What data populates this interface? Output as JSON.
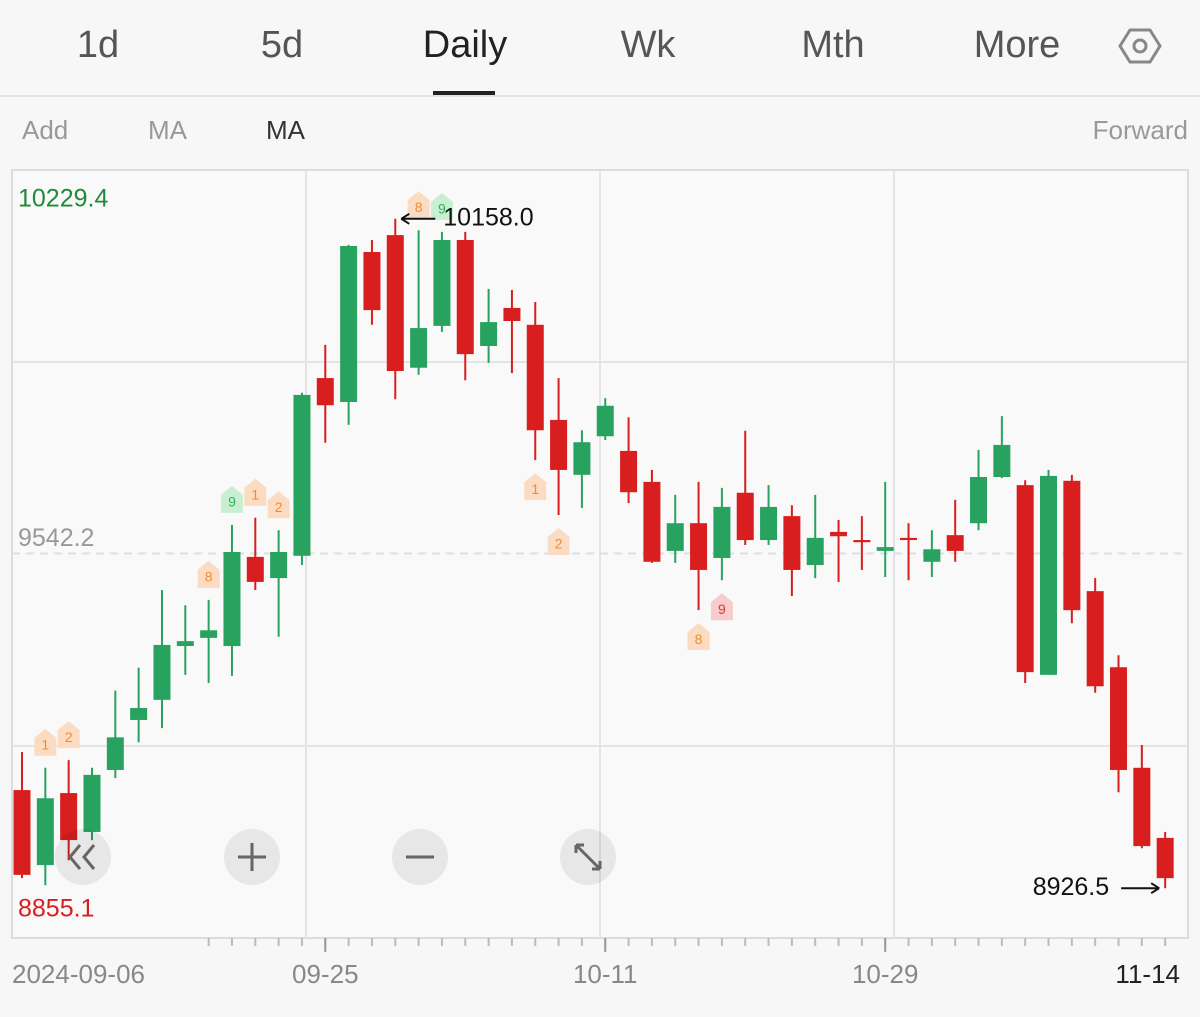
{
  "tabs": {
    "items": [
      "1d",
      "5d",
      "Daily",
      "Wk",
      "Mth",
      "More"
    ],
    "active": "Daily"
  },
  "toolbar": {
    "left": [
      "Add",
      "MA",
      "MA"
    ],
    "right": "Forward"
  },
  "chart_data": {
    "type": "candlestick",
    "categories": [
      "2024-09-06",
      null,
      null,
      null,
      null,
      null,
      null,
      null,
      null,
      null,
      null,
      null,
      null,
      "09-25",
      null,
      null,
      null,
      null,
      null,
      null,
      null,
      null,
      null,
      null,
      null,
      "10-11",
      null,
      null,
      null,
      null,
      null,
      null,
      null,
      null,
      null,
      null,
      null,
      "10-29",
      null,
      null,
      null,
      null,
      null,
      null,
      null,
      null,
      null,
      null,
      null,
      "11-14"
    ],
    "open": [
      9107,
      8969,
      9101.5,
      9030,
      9144,
      9236,
      9273,
      9372,
      9387,
      9372,
      9536,
      9497,
      9538,
      9865,
      9821,
      10097,
      10128,
      9884,
      9961,
      10119,
      9924,
      9994,
      9963,
      9788,
      9687,
      9758,
      9731,
      9674,
      9547,
      9598,
      9534,
      9654,
      9567,
      9611,
      9521,
      9582,
      9567,
      9547,
      9571,
      9527,
      9576,
      9598,
      9683,
      9668,
      9319,
      9676,
      9473,
      9333,
      9148,
      9019
    ],
    "high": [
      9177,
      9148,
      9162,
      9148,
      9290,
      9332,
      9475,
      9447,
      9457,
      9595,
      9608,
      9585,
      9838,
      9926,
      10110,
      10119,
      10158.0,
      10137,
      10134,
      10134,
      10029,
      10027,
      10005,
      9865,
      9769,
      9828,
      9793,
      9696,
      9650,
      9674,
      9663,
      9768,
      9668,
      9631,
      9650,
      9604,
      9611,
      9674,
      9598,
      9585,
      9641,
      9733,
      9795,
      9677,
      9696,
      9687,
      9497,
      9355,
      9190,
      9030
    ],
    "low": [
      8945,
      8932,
      8978,
      9015,
      9129,
      9195,
      9221,
      9319,
      9304,
      9317,
      9475,
      9389,
      9521,
      9746,
      9779,
      9963,
      9826,
      9871,
      9950,
      9861,
      9893,
      9874,
      9714,
      9613,
      9626,
      9751,
      9635,
      9525,
      9525,
      9438,
      9493,
      9558,
      9558,
      9464,
      9497,
      9490,
      9512,
      9499,
      9493,
      9499,
      9527,
      9585,
      9681,
      9304,
      9319,
      9414,
      9286,
      9103,
      9000,
      8926.5
    ],
    "close": [
      8951,
      9092,
      9015,
      9135,
      9204,
      9258,
      9374,
      9381,
      9401,
      9545,
      9490,
      9545,
      9834,
      9815,
      10108,
      9990,
      9878,
      9957,
      10119,
      9909,
      9968,
      9970,
      9769,
      9696,
      9747,
      9814,
      9655,
      9527,
      9598,
      9512,
      9628,
      9567,
      9628,
      9512,
      9571,
      9574,
      9563,
      9554,
      9567,
      9550,
      9547,
      9683,
      9742,
      9324,
      9685,
      9438,
      9298,
      9144,
      9004,
      8945
    ],
    "up_color": "#27a35f",
    "down_color": "#d81e1e",
    "ylim": [
      8855.1,
      10229.4
    ],
    "yticks": [
      8855.1,
      9542.2,
      10229.4
    ],
    "high_label": {
      "value": 10158.0,
      "label": "10158.0"
    },
    "low_label": 8926.5,
    "labels_above": [
      null,
      "1",
      "2",
      null,
      null,
      null,
      null,
      null,
      "8",
      "9",
      "1",
      "2",
      null,
      null,
      null,
      null,
      null,
      "8",
      "9",
      null,
      null,
      null,
      null,
      null,
      null,
      null,
      null,
      null,
      null,
      null,
      null,
      null,
      null,
      null,
      null,
      null,
      null,
      null,
      null,
      null,
      null,
      null,
      null,
      null,
      null,
      null,
      null,
      null,
      null,
      null
    ],
    "labels_below": [
      null,
      null,
      null,
      null,
      null,
      null,
      null,
      null,
      null,
      null,
      null,
      null,
      null,
      null,
      null,
      null,
      null,
      null,
      null,
      null,
      null,
      null,
      "1",
      "2",
      null,
      null,
      null,
      null,
      null,
      "8",
      "9",
      null,
      null,
      null,
      null,
      null,
      null,
      null,
      null,
      null,
      null,
      null,
      null,
      null,
      null,
      null,
      null,
      null,
      null,
      null
    ]
  }
}
